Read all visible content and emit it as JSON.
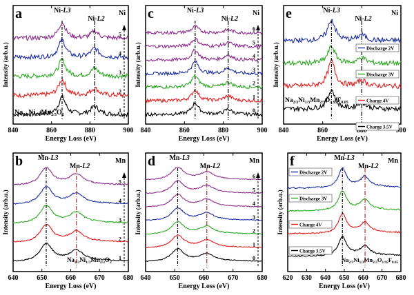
{
  "figure": {
    "x_label": "Energy Loss (eV)",
    "y_label": "Intensity (arb.u.)"
  },
  "chart_data": [
    {
      "panel": "a",
      "type": "line",
      "element": "Ni",
      "xlim": [
        840,
        900
      ],
      "xticks": [
        840,
        860,
        880,
        900
      ],
      "peak_labels": [
        {
          "text": "Ni-L3",
          "x": 865.5
        },
        {
          "text": "Ni-L2",
          "x": 882.5
        }
      ],
      "series": [
        {
          "name": "1",
          "color": "#000000",
          "peak_heights": [
            1.0,
            0.45
          ]
        },
        {
          "name": "2",
          "color": "#e21a1a",
          "peak_heights": [
            0.9,
            0.4
          ]
        },
        {
          "name": "3",
          "color": "#2aa820",
          "peak_heights": [
            0.95,
            0.45
          ]
        },
        {
          "name": "4",
          "color": "#1a2ca0",
          "peak_heights": [
            1.0,
            0.5
          ]
        },
        {
          "name": "5",
          "color": "#8a2a8a",
          "peak_heights": [
            0.9,
            0.4
          ]
        }
      ],
      "annotation": "Na2/3Ni1/3Mn2/3O2"
    },
    {
      "panel": "c",
      "type": "line",
      "element": "Ni",
      "xlim": [
        840,
        900
      ],
      "xticks": [
        840,
        860,
        880,
        900
      ],
      "peak_labels": [
        {
          "text": "Ni-L3",
          "x": 865.5
        },
        {
          "text": "Ni-L2",
          "x": 882.5
        }
      ],
      "series": [
        {
          "name": "0",
          "color": "#000000",
          "peak_heights": [
            0.9,
            0.4
          ]
        },
        {
          "name": "1",
          "color": "#e21a1a",
          "peak_heights": [
            0.85,
            0.4
          ]
        },
        {
          "name": "2",
          "color": "#2aa820",
          "peak_heights": [
            0.9,
            0.4
          ]
        },
        {
          "name": "3",
          "color": "#1a2ca0",
          "peak_heights": [
            0.95,
            0.45
          ]
        },
        {
          "name": "4",
          "color": "#8a2a8a",
          "peak_heights": [
            0.8,
            0.4
          ]
        },
        {
          "name": "5",
          "color": "#8a2a8a",
          "peak_heights": [
            0.6,
            0.3
          ]
        },
        {
          "name": "6",
          "color": "#8a2a8a",
          "peak_heights": [
            0.5,
            0.25
          ]
        }
      ]
    },
    {
      "panel": "e",
      "type": "line",
      "element": "Ni",
      "xlim": [
        840,
        900
      ],
      "xticks": [
        840,
        860,
        880,
        900
      ],
      "peak_labels": [
        {
          "text": "Ni-L3",
          "x": 864.5
        },
        {
          "text": "Ni-L2",
          "x": 880
        }
      ],
      "series": [
        {
          "name": "Charge 3.5V",
          "color": "#000000",
          "peak_heights": [
            1.0,
            0.35
          ]
        },
        {
          "name": "Charge 4V",
          "color": "#e21a1a",
          "peak_heights": [
            1.3,
            0.3
          ]
        },
        {
          "name": "Discharge 3V",
          "color": "#2aa820",
          "peak_heights": [
            0.9,
            0.3
          ]
        },
        {
          "name": "Discharge 2V",
          "color": "#1a2ca0",
          "peak_heights": [
            1.1,
            0.3
          ]
        }
      ],
      "legend_labels": [
        "Discharge 2V",
        "Discharge 3V",
        "Charge 4V",
        "Charge 3.5V"
      ],
      "annotation": "Na2/3Ni1/3Mn2/3O1.95F0.05"
    },
    {
      "panel": "b",
      "type": "line",
      "element": "Mn",
      "xlim": [
        640,
        680
      ],
      "xticks": [
        640,
        650,
        660,
        670,
        680
      ],
      "peak_labels": [
        {
          "text": "Mn-L3",
          "x": 651.5
        },
        {
          "text": "Mn-L2",
          "x": 662
        }
      ],
      "series": [
        {
          "name": "1",
          "color": "#000000",
          "peak_heights": [
            1.0,
            0.55
          ]
        },
        {
          "name": "2",
          "color": "#e21a1a",
          "peak_heights": [
            1.0,
            0.55
          ]
        },
        {
          "name": "3",
          "color": "#2aa820",
          "peak_heights": [
            1.0,
            0.55
          ]
        },
        {
          "name": "4",
          "color": "#1a2ca0",
          "peak_heights": [
            1.0,
            0.55
          ]
        },
        {
          "name": "5",
          "color": "#8a2a8a",
          "peak_heights": [
            1.0,
            0.55
          ]
        }
      ],
      "annotation": "Na2/3Ni1/3Mn2/3O2"
    },
    {
      "panel": "d",
      "type": "line",
      "element": "Mn",
      "xlim": [
        640,
        680
      ],
      "xticks": [
        640,
        650,
        660,
        670,
        680
      ],
      "peak_labels": [
        {
          "text": "Mn-L3",
          "x": 651
        },
        {
          "text": "Mn-L2",
          "x": 661
        }
      ],
      "series": [
        {
          "name": "0",
          "color": "#000000",
          "peak_heights": [
            1.0,
            0.55
          ]
        },
        {
          "name": "1",
          "color": "#e21a1a",
          "peak_heights": [
            1.0,
            0.55
          ]
        },
        {
          "name": "2",
          "color": "#2aa820",
          "peak_heights": [
            1.0,
            0.55
          ]
        },
        {
          "name": "3",
          "color": "#1a2ca0",
          "peak_heights": [
            1.0,
            0.55
          ]
        },
        {
          "name": "4",
          "color": "#8a2a8a",
          "peak_heights": [
            1.0,
            0.55
          ]
        },
        {
          "name": "5",
          "color": "#8a2a8a",
          "peak_heights": [
            1.0,
            0.55
          ]
        },
        {
          "name": "6",
          "color": "#8a2a8a",
          "peak_heights": [
            1.0,
            0.55
          ]
        }
      ]
    },
    {
      "panel": "f",
      "type": "line",
      "element": "Mn",
      "xlim": [
        620,
        680
      ],
      "xticks": [
        620,
        630,
        640,
        650,
        660,
        670,
        680
      ],
      "peak_labels": [
        {
          "text": "Mn-L3",
          "x": 649
        },
        {
          "text": "Mn-L2",
          "x": 661
        }
      ],
      "series": [
        {
          "name": "Charge 3.5V",
          "color": "#000000",
          "peak_heights": [
            1.0,
            0.45
          ]
        },
        {
          "name": "Charge 4V",
          "color": "#e21a1a",
          "peak_heights": [
            1.0,
            0.5
          ]
        },
        {
          "name": "Discharge 3V",
          "color": "#2aa820",
          "peak_heights": [
            1.0,
            0.5
          ]
        },
        {
          "name": "Discharge 2V",
          "color": "#1a2ca0",
          "peak_heights": [
            1.0,
            0.5
          ]
        }
      ],
      "legend_labels": [
        "Discharge 2V",
        "Discharge 3V",
        "Charge 4V",
        "Charge 3.5V"
      ],
      "annotation": "Na2/3Ni1/3Mn2/3O1.95F0.05"
    }
  ]
}
